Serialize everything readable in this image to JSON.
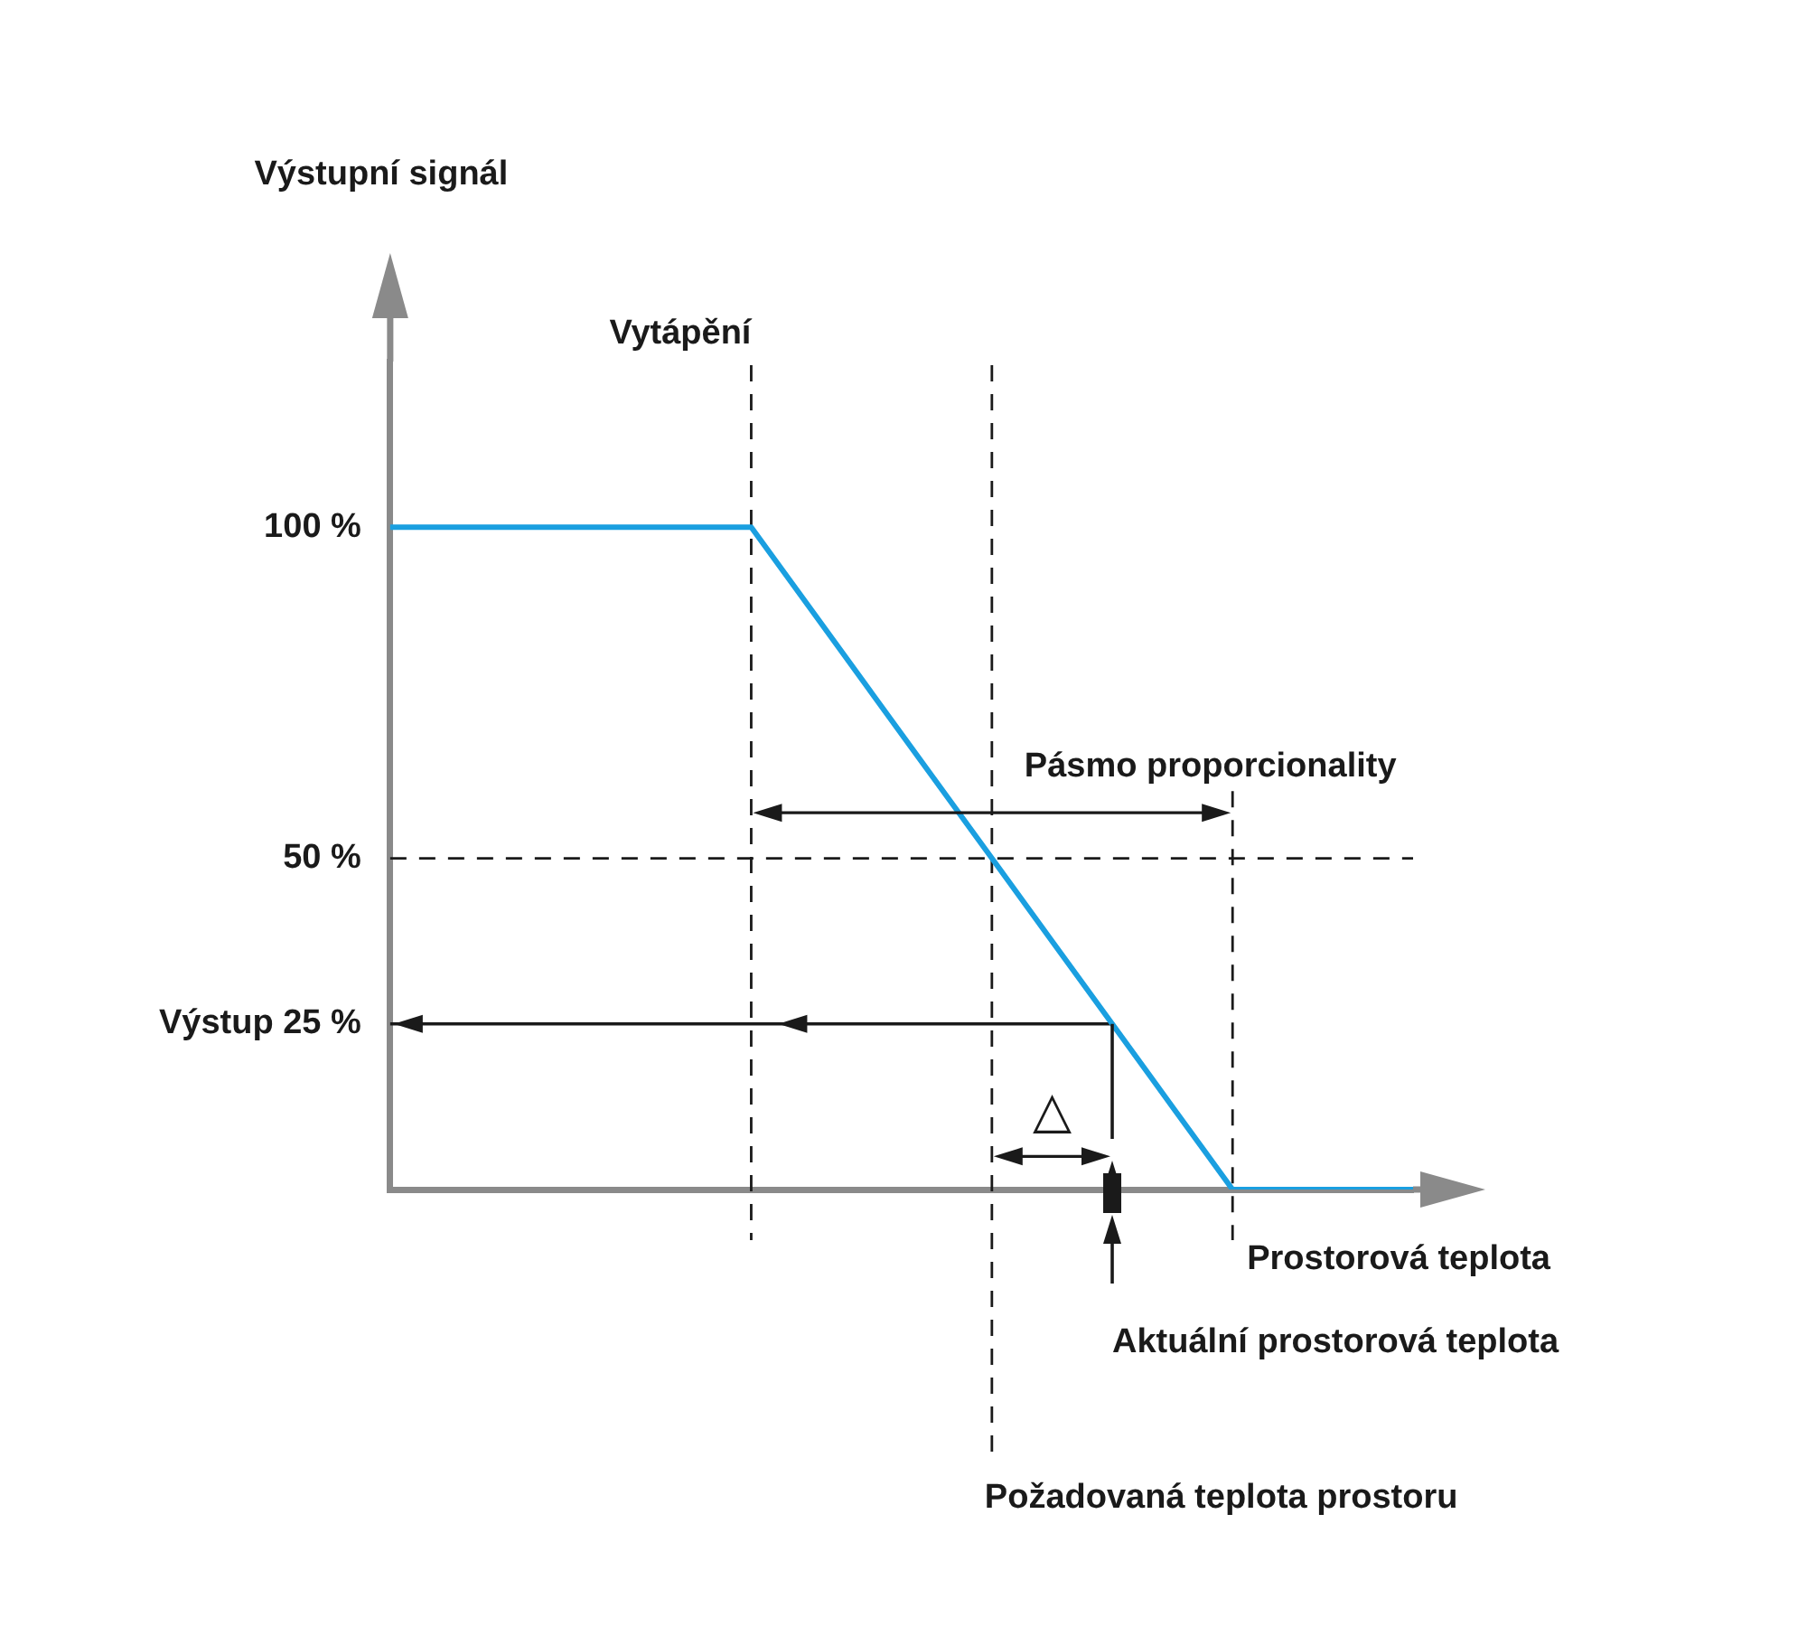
{
  "chart_data": {
    "type": "line",
    "xlabel": "Prostorová teplota",
    "ylabel": "Výstupní signál",
    "categories": [
      null,
      null,
      null,
      null,
      null,
      null,
      null,
      null,
      null,
      null,
      null,
      null,
      null,
      null,
      null,
      null,
      null,
      null
    ],
    "series": [
      {
        "color": "#1a9fe0",
        "values": [
          100,
          100,
          100,
          100,
          100,
          100,
          100,
          87.5,
          75,
          62.5,
          50,
          37.5,
          25,
          12.5,
          0,
          0,
          0,
          0
        ]
      }
    ],
    "ylim": [
      0,
      125
    ],
    "yticks": [
      {
        "value": 100,
        "label": "100 %"
      },
      {
        "value": 50,
        "label": "50 %"
      },
      {
        "value": 25,
        "label": "Výstup 25 %"
      }
    ],
    "tick_labels": "y",
    "grid": false,
    "ref_lines": [
      {
        "axis": "y",
        "value": 50,
        "line_style": "dashed",
        "color": "#1a1a1a"
      },
      {
        "axis": "y",
        "value": 25,
        "line_style": "solid",
        "color": "#1a1a1a"
      }
    ],
    "annotations": [
      "Vytápění",
      "Pásmo proporcionality",
      "△",
      "Požadovaná teplota prostoru",
      "Aktuální prostorová teplota"
    ]
  }
}
